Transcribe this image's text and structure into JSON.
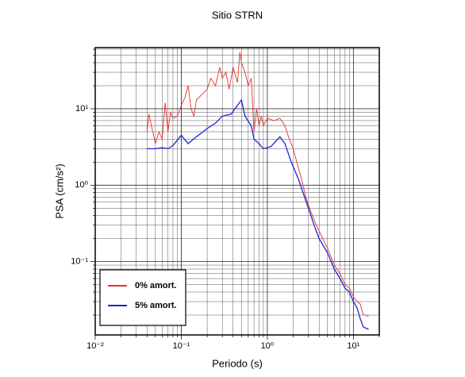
{
  "chart_data": {
    "type": "line",
    "title": "Sitio STRN",
    "x_label": "Periodo (s)",
    "y_label": "PSA (cm/s²)",
    "xlog": true,
    "ylog": true,
    "grid": true,
    "minor_grid": true,
    "legend": "lower left",
    "xlim": [
      0.01,
      20
    ],
    "ylim": [
      0.011,
      63
    ],
    "xticks": [
      {
        "value": 0.01,
        "label": "10⁻²"
      },
      {
        "value": 0.1,
        "label": "10⁻¹"
      },
      {
        "value": 1,
        "label": "10⁰"
      },
      {
        "value": 10,
        "label": "10¹"
      }
    ],
    "yticks": [
      {
        "value": 0.1,
        "label": "10⁻¹"
      },
      {
        "value": 1,
        "label": "10⁰"
      },
      {
        "value": 10,
        "label": "10¹"
      }
    ],
    "series": [
      {
        "name": "0% amort.",
        "color": "#e8302a",
        "x": [
          0.04,
          0.042,
          0.045,
          0.05,
          0.055,
          0.06,
          0.065,
          0.07,
          0.075,
          0.08,
          0.09,
          0.1,
          0.11,
          0.12,
          0.13,
          0.14,
          0.15,
          0.17,
          0.2,
          0.22,
          0.25,
          0.28,
          0.3,
          0.33,
          0.36,
          0.4,
          0.45,
          0.48,
          0.5,
          0.55,
          0.6,
          0.65,
          0.7,
          0.75,
          0.8,
          0.85,
          0.9,
          1.0,
          1.2,
          1.4,
          1.6,
          1.8,
          2.0,
          2.2,
          2.5,
          2.8,
          3.0,
          3.5,
          4,
          5,
          6,
          7,
          8,
          9,
          10,
          11,
          12,
          13,
          14,
          15
        ],
        "values": [
          5,
          8.5,
          6,
          3.5,
          5,
          4,
          12,
          5,
          9,
          7.5,
          8,
          11,
          14,
          20,
          10,
          8,
          13,
          15,
          18,
          25,
          20,
          35,
          25,
          30,
          18,
          35,
          22,
          55,
          40,
          30,
          20,
          25,
          5,
          10,
          6,
          8,
          6,
          7.5,
          7,
          7.5,
          6,
          4,
          3,
          2,
          1.2,
          0.7,
          0.55,
          0.35,
          0.25,
          0.15,
          0.09,
          0.07,
          0.05,
          0.045,
          0.035,
          0.03,
          0.028,
          0.02,
          0.02,
          0.019
        ]
      },
      {
        "name": "5% amort.",
        "color": "#1f22d6",
        "x": [
          0.04,
          0.05,
          0.06,
          0.07,
          0.08,
          0.1,
          0.12,
          0.15,
          0.2,
          0.25,
          0.3,
          0.38,
          0.42,
          0.5,
          0.55,
          0.65,
          0.7,
          0.8,
          0.9,
          1.1,
          1.4,
          1.6,
          1.9,
          2.3,
          2.6,
          3,
          3.5,
          4,
          5,
          6,
          7,
          8,
          9,
          10,
          11,
          12,
          13,
          15
        ],
        "values": [
          3,
          3,
          3.1,
          3,
          3.3,
          4.5,
          3.5,
          4.3,
          5.5,
          6.5,
          8,
          8.5,
          10,
          13,
          8,
          6,
          4,
          3.5,
          3,
          3.2,
          4.3,
          3.5,
          2,
          1.2,
          0.8,
          0.5,
          0.3,
          0.2,
          0.13,
          0.08,
          0.06,
          0.045,
          0.04,
          0.03,
          0.025,
          0.018,
          0.014,
          0.013
        ]
      }
    ]
  }
}
